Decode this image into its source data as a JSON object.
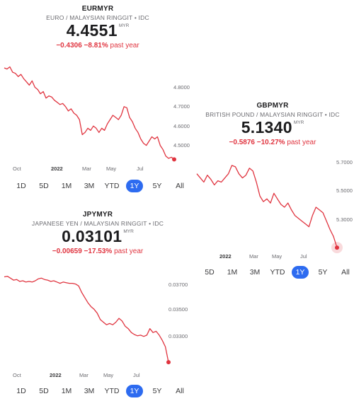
{
  "colors": {
    "line": "#e0343f",
    "accent": "#2d6bf0",
    "muted": "#6b6b70"
  },
  "panels": [
    {
      "symbol": "EURMYR",
      "subtitle": "EURO / MALAYSIAN RINGGIT • IDC",
      "price": "4.4551",
      "unit": "MYR",
      "change": "−0.4306",
      "change_pct": "−8.81%",
      "change_label": "past year",
      "ranges": [
        "1D",
        "5D",
        "1M",
        "3M",
        "YTD",
        "1Y",
        "5Y",
        "All"
      ],
      "active_range": "1Y"
    },
    {
      "symbol": "GBPMYR",
      "subtitle": "BRITISH POUND / MALAYSIAN RINGGIT • IDC",
      "price": "5.1340",
      "unit": "MYR",
      "change": "−0.5876",
      "change_pct": "−10.27%",
      "change_label": "past year",
      "ranges": [
        "5D",
        "1M",
        "3M",
        "YTD",
        "1Y",
        "5Y",
        "All"
      ],
      "active_range": "1Y"
    },
    {
      "symbol": "JPYMYR",
      "subtitle": "JAPANESE YEN / MALAYSIAN RINGGIT • IDC",
      "price": "0.03101",
      "unit": "MYR",
      "change": "−0.00659",
      "change_pct": "−17.53%",
      "change_label": "past year",
      "ranges": [
        "1D",
        "5D",
        "1M",
        "3M",
        "YTD",
        "1Y",
        "5Y",
        "All"
      ],
      "active_range": "1Y"
    }
  ],
  "chart_data": [
    {
      "type": "line",
      "title": "EURMYR",
      "xlabels": [
        "Oct",
        "2022",
        "Mar",
        "May",
        "Jul"
      ],
      "y_ticks": [
        "4.8000",
        "4.7000",
        "4.6000",
        "4.5000"
      ],
      "ylim": [
        4.43,
        4.89
      ],
      "values": [
        4.88,
        4.875,
        4.885,
        4.86,
        4.855,
        4.84,
        4.85,
        4.83,
        4.815,
        4.8,
        4.82,
        4.79,
        4.78,
        4.76,
        4.77,
        4.74,
        4.75,
        4.745,
        4.73,
        4.72,
        4.71,
        4.715,
        4.7,
        4.68,
        4.69,
        4.67,
        4.66,
        4.64,
        4.57,
        4.58,
        4.6,
        4.59,
        4.61,
        4.6,
        4.58,
        4.6,
        4.59,
        4.62,
        4.64,
        4.66,
        4.65,
        4.64,
        4.66,
        4.7,
        4.695,
        4.65,
        4.63,
        4.6,
        4.58,
        4.55,
        4.53,
        4.52,
        4.54,
        4.56,
        4.55,
        4.56,
        4.52,
        4.5,
        4.47,
        4.46,
        4.465,
        4.455
      ]
    },
    {
      "type": "line",
      "title": "GBPMYR",
      "xlabels": [
        "2022",
        "Mar",
        "May",
        "Jul"
      ],
      "y_ticks": [
        "5.7000",
        "5.5000",
        "5.3000"
      ],
      "ylim": [
        5.1,
        5.75
      ],
      "values": [
        5.66,
        5.63,
        5.6,
        5.65,
        5.62,
        5.58,
        5.61,
        5.6,
        5.63,
        5.66,
        5.72,
        5.71,
        5.66,
        5.63,
        5.65,
        5.7,
        5.68,
        5.6,
        5.5,
        5.46,
        5.48,
        5.45,
        5.52,
        5.48,
        5.44,
        5.42,
        5.45,
        5.4,
        5.36,
        5.34,
        5.32,
        5.3,
        5.28,
        5.36,
        5.42,
        5.4,
        5.38,
        5.32,
        5.26,
        5.21,
        5.13
      ]
    },
    {
      "type": "line",
      "title": "JPYMYR",
      "xlabels": [
        "Oct",
        "2022",
        "Mar",
        "May",
        "Jul"
      ],
      "y_ticks": [
        "0.03700",
        "0.03500",
        "0.03300"
      ],
      "ylim": [
        0.0308,
        0.0379
      ],
      "values": [
        0.0376,
        0.03765,
        0.0375,
        0.03735,
        0.0374,
        0.03725,
        0.0373,
        0.0372,
        0.03725,
        0.0372,
        0.0373,
        0.03745,
        0.0375,
        0.0374,
        0.03735,
        0.03725,
        0.0373,
        0.0372,
        0.0371,
        0.0372,
        0.03715,
        0.0371,
        0.0371,
        0.03705,
        0.0369,
        0.0364,
        0.036,
        0.0356,
        0.0353,
        0.0351,
        0.0348,
        0.0343,
        0.0341,
        0.0339,
        0.034,
        0.0339,
        0.0341,
        0.0344,
        0.0342,
        0.0338,
        0.0336,
        0.0333,
        0.03315,
        0.03305,
        0.0331,
        0.033,
        0.0331,
        0.0336,
        0.0333,
        0.0334,
        0.0331,
        0.0327,
        0.0322,
        0.03101
      ]
    }
  ]
}
